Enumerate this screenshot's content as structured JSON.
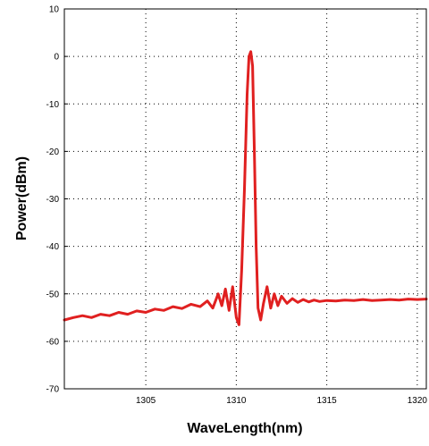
{
  "chart_data": {
    "type": "line",
    "title": "",
    "xlabel": "WaveLength(nm)",
    "ylabel": "Power(dBm)",
    "xlim": [
      1300.5,
      1320.5
    ],
    "ylim": [
      -70,
      10
    ],
    "x_ticks": [
      1305,
      1310,
      1315,
      1320
    ],
    "y_ticks": [
      10,
      0,
      -10,
      -20,
      -30,
      -40,
      -50,
      -60,
      -70
    ],
    "grid": true,
    "grid_style": "dotted",
    "legend": "none",
    "series": [
      {
        "color": "#e02020",
        "x": [
          1300.5,
          1301.0,
          1301.5,
          1302.0,
          1302.5,
          1303.0,
          1303.5,
          1304.0,
          1304.5,
          1305.0,
          1305.5,
          1306.0,
          1306.5,
          1307.0,
          1307.5,
          1308.0,
          1308.4,
          1308.7,
          1309.0,
          1309.2,
          1309.4,
          1309.6,
          1309.8,
          1310.0,
          1310.15,
          1310.3,
          1310.45,
          1310.6,
          1310.7,
          1310.8,
          1310.9,
          1311.0,
          1311.1,
          1311.2,
          1311.35,
          1311.5,
          1311.7,
          1311.9,
          1312.1,
          1312.3,
          1312.5,
          1312.8,
          1313.1,
          1313.4,
          1313.7,
          1314.0,
          1314.3,
          1314.6,
          1315.0,
          1315.5,
          1316.0,
          1316.5,
          1317.0,
          1317.5,
          1318.0,
          1318.5,
          1319.0,
          1319.5,
          1320.0,
          1320.5
        ],
        "y": [
          -55.5,
          -55.0,
          -54.6,
          -55.0,
          -54.3,
          -54.6,
          -53.9,
          -54.3,
          -53.6,
          -53.9,
          -53.2,
          -53.5,
          -52.7,
          -53.1,
          -52.2,
          -52.7,
          -51.5,
          -53.0,
          -50.0,
          -52.5,
          -49.0,
          -53.5,
          -48.5,
          -55.0,
          -56.5,
          -45.0,
          -28.0,
          -8.0,
          0.0,
          1.0,
          -2.0,
          -20.0,
          -40.0,
          -53.0,
          -55.5,
          -52.0,
          -48.5,
          -53.0,
          -50.0,
          -52.5,
          -50.5,
          -52.0,
          -51.0,
          -51.8,
          -51.2,
          -51.7,
          -51.3,
          -51.6,
          -51.4,
          -51.5,
          -51.3,
          -51.4,
          -51.2,
          -51.4,
          -51.3,
          -51.2,
          -51.3,
          -51.1,
          -51.2,
          -51.1
        ]
      }
    ]
  }
}
